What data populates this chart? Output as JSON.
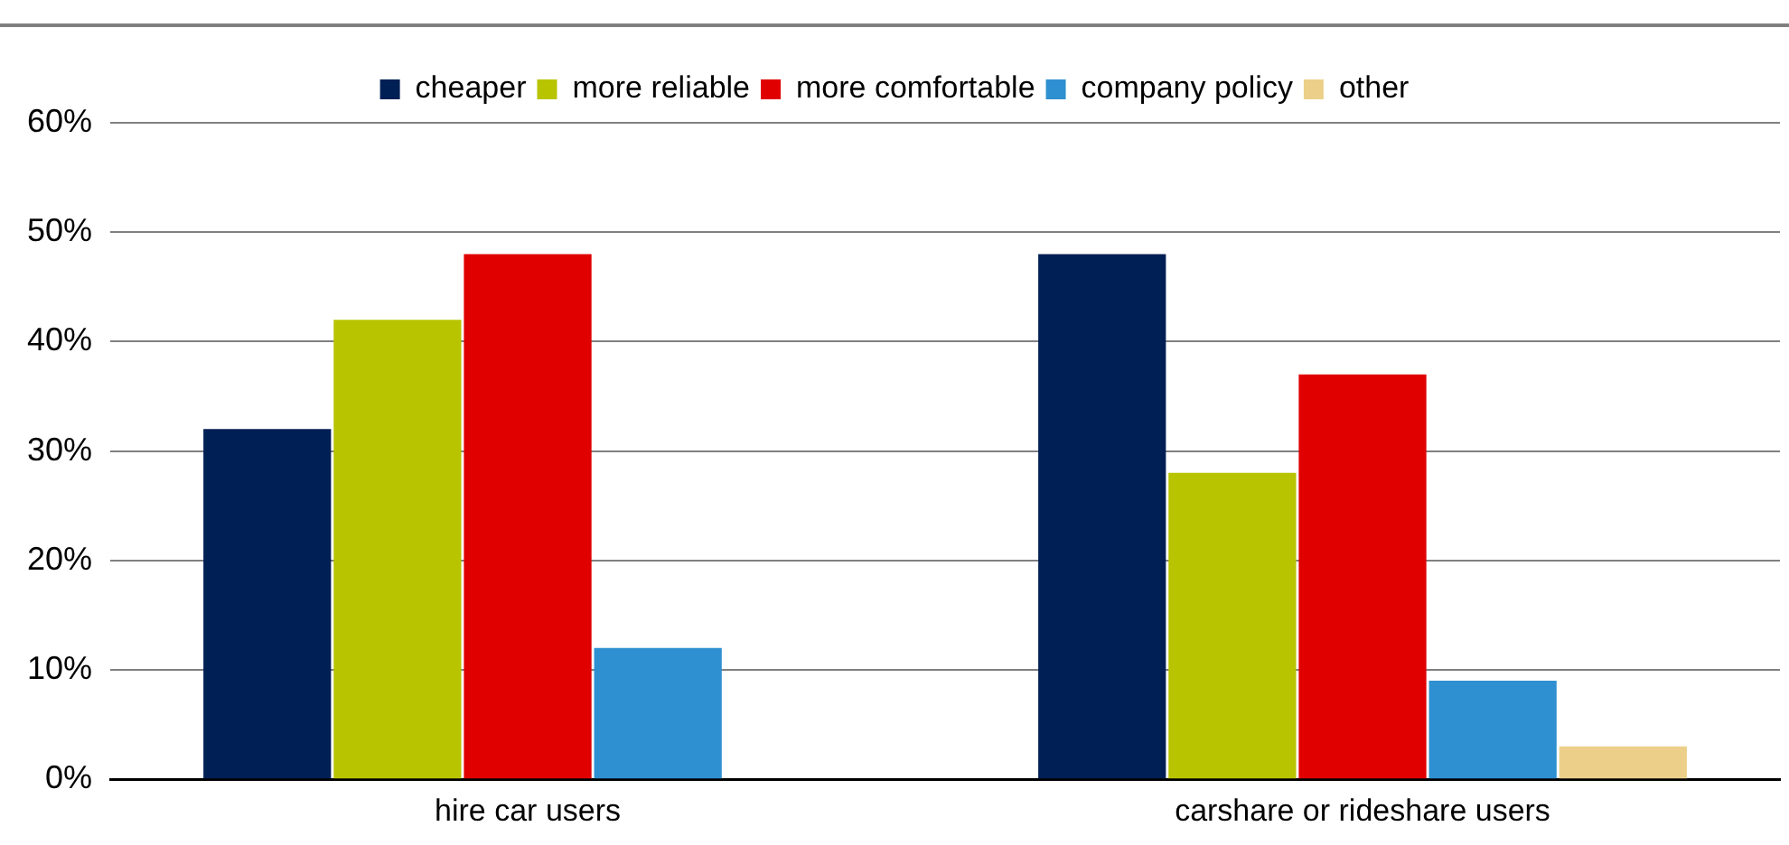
{
  "chart_data": {
    "type": "bar",
    "categories": [
      "hire car users",
      "carshare or rideshare users"
    ],
    "series": [
      {
        "name": "cheaper",
        "color": "#001f54",
        "values": [
          32,
          48
        ]
      },
      {
        "name": "more reliable",
        "color": "#b8c400",
        "values": [
          42,
          28
        ]
      },
      {
        "name": "more comfortable",
        "color": "#e00000",
        "values": [
          48,
          37
        ]
      },
      {
        "name": "company policy",
        "color": "#2e90d0",
        "values": [
          12,
          9
        ]
      },
      {
        "name": "other",
        "color": "#ecd08a",
        "values": [
          0,
          3
        ]
      }
    ],
    "ylim": [
      0,
      60
    ],
    "yticks": [
      {
        "value": 0,
        "label": "0%"
      },
      {
        "value": 10,
        "label": "10%"
      },
      {
        "value": 20,
        "label": "20%"
      },
      {
        "value": 30,
        "label": "30%"
      },
      {
        "value": 40,
        "label": "40%"
      },
      {
        "value": 50,
        "label": "50%"
      },
      {
        "value": 60,
        "label": "60%"
      }
    ],
    "grid": "y",
    "legend": "top"
  }
}
